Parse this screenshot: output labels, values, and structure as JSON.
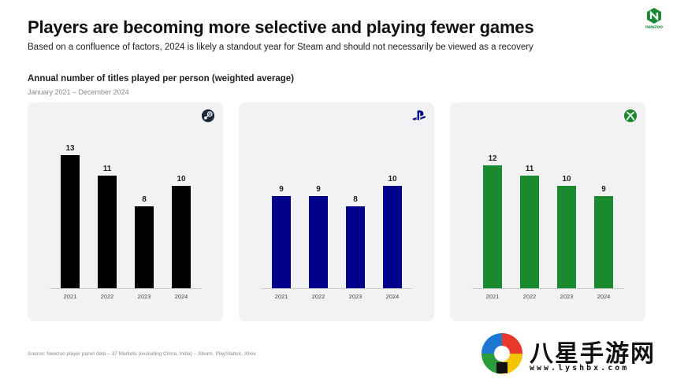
{
  "header": {
    "title": "Players are becoming more selective and playing fewer games",
    "subtitle": "Based on a confluence of factors, 2024 is likely a standout year for Steam and should not necessarily be viewed as a recovery"
  },
  "brand": {
    "name": "newzoo",
    "color": "#1a8a35"
  },
  "chart_header": {
    "title": "Annual number of titles played per person (weighted average)",
    "period": "January 2021 – December 2024"
  },
  "chart_data": [
    {
      "type": "bar",
      "platform_icon": "steam-icon",
      "color": "#000000",
      "categories": [
        "2021",
        "2022",
        "2023",
        "2024"
      ],
      "values": [
        13,
        11,
        8,
        10
      ],
      "ylim": [
        0,
        13
      ]
    },
    {
      "type": "bar",
      "platform_icon": "playstation-icon",
      "color": "#00008b",
      "categories": [
        "2021",
        "2022",
        "2023",
        "2024"
      ],
      "values": [
        9,
        9,
        8,
        10
      ],
      "ylim": [
        0,
        13
      ]
    },
    {
      "type": "bar",
      "platform_icon": "xbox-icon",
      "color": "#1a8a2e",
      "categories": [
        "2021",
        "2022",
        "2023",
        "2024"
      ],
      "values": [
        12,
        11,
        10,
        9
      ],
      "ylim": [
        0,
        13
      ]
    }
  ],
  "source": "Source: Newzoo player panel data – 37 Markets (excluding China, India) – Steam, PlayStation, Xbox",
  "watermark": {
    "name": "八星手游网",
    "url": "www.lyshbx.com"
  }
}
